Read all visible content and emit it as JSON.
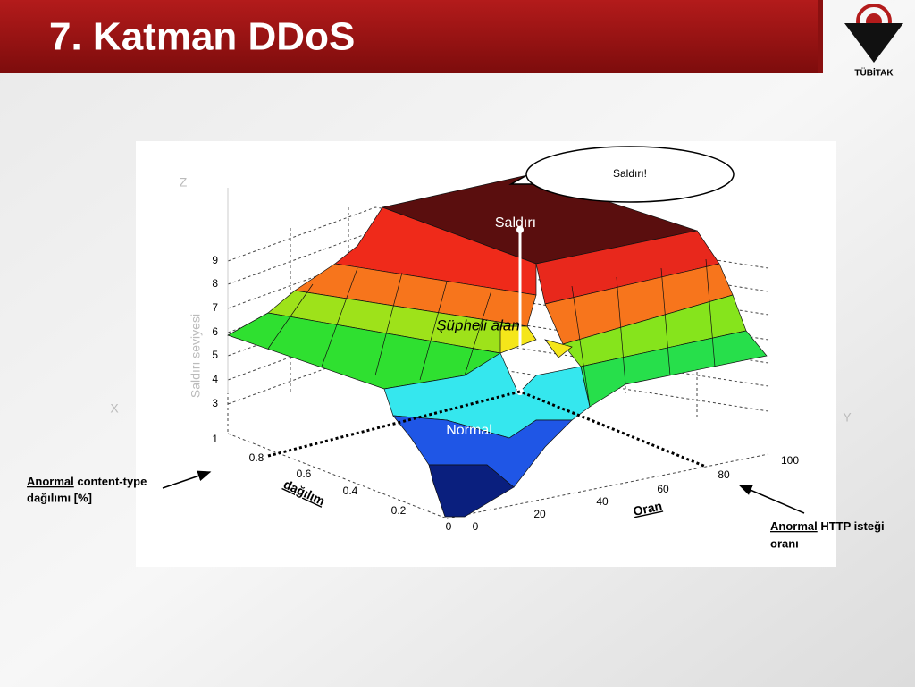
{
  "header": {
    "title": "7. Katman DDoS",
    "logo": "TÜBİTAK"
  },
  "figure": {
    "callout": "Saldırı!",
    "region_attack": "Saldırı",
    "region_suspect": "Şüpheli alan",
    "region_normal": "Normal",
    "z_axis_letter": "Z",
    "x_axis_letter": "X",
    "y_axis_letter": "Y",
    "z_label": "Saldırı seviyesi",
    "z_ticks": [
      "9",
      "8",
      "7",
      "6",
      "5",
      "4",
      "3",
      "1"
    ],
    "x_ticks": [
      "0.8",
      "0.6",
      "0.4",
      "0.2",
      "0"
    ],
    "y_ticks": [
      "0",
      "20",
      "40",
      "60",
      "80",
      "100"
    ],
    "x_label": "dağılım",
    "y_label": "Oran"
  },
  "annotations": {
    "left": {
      "emphasis": "Anormal",
      "line1": " content-type",
      "line2": "dağılımı [%]"
    },
    "right": {
      "emphasis": "Anormal",
      "line1": " HTTP isteği",
      "line2": "oranı"
    }
  }
}
